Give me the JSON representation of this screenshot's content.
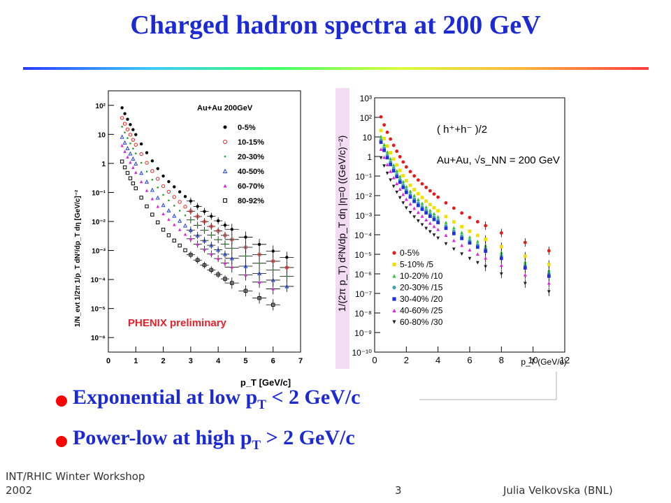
{
  "slide": {
    "title": "Charged hadron spectra at 200 GeV",
    "footer_left_line1": "INT/RHIC Winter Workshop",
    "footer_left_line2": "2002",
    "page_number": "3",
    "footer_right": "Julia Velkovska (BNL)"
  },
  "bullets": [
    {
      "text": "Exponential at low p",
      "sub": "T",
      "rest": " < 2 GeV/c"
    },
    {
      "text": "Power-low at high p",
      "sub": "T",
      "rest": " > 2 GeV/c"
    }
  ],
  "chart_data": [
    {
      "type": "scatter",
      "title": "Au+Au 200GeV",
      "xlabel": "p_T [GeV/c]",
      "ylabel": "1/N_evt 1/2π 1/p_T dN²/dp_T dη [GeV/c]⁻²",
      "annotation": "PHENIX preliminary",
      "annotation_color": "#e8202a",
      "xlim": [
        0,
        7
      ],
      "ylim_log10": [
        -6.5,
        2.5
      ],
      "xticks": [
        "0",
        "1",
        "2",
        "3",
        "4",
        "5",
        "6",
        "7"
      ],
      "yticks": [
        "10⁻⁶",
        "10⁻⁵",
        "10⁻⁴",
        "10⁻³",
        "10⁻²",
        "10⁻¹",
        "1",
        "10",
        "10²"
      ],
      "legend_position": "top-right",
      "series": [
        {
          "name": "0-5%",
          "marker": "filled-circle",
          "color": "#000000",
          "log10_A": 3.1,
          "x": [
            0.5,
            0.6,
            0.7,
            0.8,
            0.9,
            1.0,
            1.2,
            1.4,
            1.6,
            1.8,
            2.0,
            2.2,
            2.4,
            2.6,
            2.8,
            3.0,
            3.25,
            3.5,
            3.75,
            4.0,
            4.25,
            4.5,
            5.0,
            5.5,
            6.0,
            6.5
          ]
        },
        {
          "name": "10-15%",
          "marker": "open-circle",
          "color": "#e82020",
          "log10_A": 2.75,
          "x": [
            0.5,
            0.6,
            0.7,
            0.8,
            0.9,
            1.0,
            1.2,
            1.4,
            1.6,
            1.8,
            2.0,
            2.2,
            2.4,
            2.6,
            2.8,
            3.0,
            3.25,
            3.5,
            3.75,
            4.0,
            4.25,
            4.5,
            5.0,
            5.5,
            6.0,
            6.5
          ]
        },
        {
          "name": "20-30%",
          "marker": "small-dot",
          "color": "#20a020",
          "log10_A": 2.45,
          "x": [
            0.5,
            0.6,
            0.7,
            0.8,
            0.9,
            1.0,
            1.2,
            1.4,
            1.6,
            1.8,
            2.0,
            2.2,
            2.4,
            2.6,
            2.8,
            3.0,
            3.25,
            3.5,
            3.75,
            4.0,
            4.25,
            4.5,
            5.0,
            5.5,
            6.0,
            6.5
          ]
        },
        {
          "name": "40-50%",
          "marker": "open-triangle",
          "color": "#2040e8",
          "log10_A": 2.1,
          "x": [
            0.5,
            0.6,
            0.7,
            0.8,
            0.9,
            1.0,
            1.2,
            1.4,
            1.6,
            1.8,
            2.0,
            2.2,
            2.4,
            2.6,
            2.8,
            3.0,
            3.25,
            3.5,
            3.75,
            4.0,
            4.25,
            4.5,
            5.0,
            5.5,
            6.0,
            6.5
          ]
        },
        {
          "name": "60-70%",
          "marker": "filled-triangle",
          "color": "#e020e0",
          "log10_A": 1.8,
          "x": [
            0.5,
            0.6,
            0.7,
            0.8,
            0.9,
            1.0,
            1.2,
            1.4,
            1.6,
            1.8,
            2.0,
            2.2,
            2.4,
            2.6,
            2.8,
            3.0,
            3.25,
            3.5,
            3.75,
            4.0,
            4.25,
            4.5,
            5.0,
            5.5,
            6.0
          ]
        },
        {
          "name": "80-92%",
          "marker": "open-square",
          "color": "#000000",
          "log10_A": 1.25,
          "x": [
            0.5,
            0.6,
            0.7,
            0.8,
            0.9,
            1.0,
            1.2,
            1.4,
            1.6,
            1.8,
            2.0,
            2.2,
            2.4,
            2.6,
            2.8,
            3.0,
            3.25,
            3.5,
            3.75,
            4.0,
            4.25,
            4.5,
            5.0,
            5.5,
            6.0
          ]
        }
      ]
    },
    {
      "type": "scatter",
      "title": "( h⁺+h⁻ )/2",
      "subtitle": "Au+Au, √s_NN = 200 GeV",
      "xlabel": "p_T (GeV/c)",
      "ylabel": "1/(2π p_T) d²N/dp_T dη |η=0 ((GeV/c)⁻²)",
      "xlim": [
        0,
        12
      ],
      "ylim_log10": [
        -10,
        3
      ],
      "xticks": [
        "0",
        "2",
        "4",
        "6",
        "8",
        "10",
        "12"
      ],
      "yticks": [
        "10⁻¹⁰",
        "10⁻⁹",
        "10⁻⁸",
        "10⁻⁷",
        "10⁻⁶",
        "10⁻⁵",
        "10⁻⁴",
        "10⁻³",
        "10⁻²",
        "10⁻¹",
        "1",
        "10",
        "10²",
        "10³"
      ],
      "legend_position": "bottom-left",
      "series": [
        {
          "name": "0-5%",
          "marker": "circle",
          "color": "#e81818",
          "log10_A": 3.0,
          "x": [
            0.4,
            0.6,
            0.8,
            1.0,
            1.2,
            1.4,
            1.6,
            1.8,
            2.0,
            2.25,
            2.5,
            2.75,
            3.0,
            3.25,
            3.5,
            3.75,
            4.0,
            4.5,
            5.0,
            5.5,
            6.0,
            6.5,
            7.0,
            8.0,
            9.5,
            11.0
          ]
        },
        {
          "name": "5-10% /5",
          "marker": "square",
          "color": "#f0e000",
          "log10_A": 2.3,
          "x": [
            0.4,
            0.6,
            0.8,
            1.0,
            1.2,
            1.4,
            1.6,
            1.8,
            2.0,
            2.25,
            2.5,
            2.75,
            3.0,
            3.25,
            3.5,
            3.75,
            4.0,
            4.5,
            5.0,
            5.5,
            6.0,
            6.5,
            7.0,
            8.0,
            9.5,
            11.0
          ]
        },
        {
          "name": "10-20% /10",
          "marker": "triangle",
          "color": "#30c030",
          "log10_A": 2.0,
          "x": [
            0.4,
            0.6,
            0.8,
            1.0,
            1.2,
            1.4,
            1.6,
            1.8,
            2.0,
            2.25,
            2.5,
            2.75,
            3.0,
            3.25,
            3.5,
            3.75,
            4.0,
            4.5,
            5.0,
            5.5,
            6.0,
            6.5,
            7.0,
            8.0,
            9.5,
            11.0
          ]
        },
        {
          "name": "20-30% /15",
          "marker": "circle",
          "color": "#40a0b0",
          "log10_A": 1.82,
          "x": [
            0.4,
            0.6,
            0.8,
            1.0,
            1.2,
            1.4,
            1.6,
            1.8,
            2.0,
            2.25,
            2.5,
            2.75,
            3.0,
            3.25,
            3.5,
            3.75,
            4.0,
            4.5,
            5.0,
            5.5,
            6.0,
            6.5,
            7.0,
            8.0,
            9.5,
            11.0
          ]
        },
        {
          "name": "30-40% /20",
          "marker": "square",
          "color": "#2030e0",
          "log10_A": 1.7,
          "x": [
            0.4,
            0.6,
            0.8,
            1.0,
            1.2,
            1.4,
            1.6,
            1.8,
            2.0,
            2.25,
            2.5,
            2.75,
            3.0,
            3.25,
            3.5,
            3.75,
            4.0,
            4.5,
            5.0,
            5.5,
            6.0,
            6.5,
            7.0,
            8.0,
            9.5,
            11.0
          ]
        },
        {
          "name": "40-60% /25",
          "marker": "triangle",
          "color": "#e020e0",
          "log10_A": 1.35,
          "x": [
            0.4,
            0.6,
            0.8,
            1.0,
            1.2,
            1.4,
            1.6,
            1.8,
            2.0,
            2.25,
            2.5,
            2.75,
            3.0,
            3.25,
            3.5,
            3.75,
            4.0,
            4.5,
            5.0,
            5.5,
            6.0,
            6.5,
            7.0,
            8.0,
            9.5,
            11.0
          ]
        },
        {
          "name": "60-80% /30",
          "marker": "triangle-down",
          "color": "#202020",
          "log10_A": 0.9,
          "x": [
            0.4,
            0.6,
            0.8,
            1.0,
            1.2,
            1.4,
            1.6,
            1.8,
            2.0,
            2.25,
            2.5,
            2.75,
            3.0,
            3.25,
            3.5,
            3.75,
            4.0,
            4.5,
            5.0,
            5.5,
            6.0,
            6.5,
            7.0,
            8.0,
            9.5,
            11.0
          ]
        }
      ]
    }
  ]
}
